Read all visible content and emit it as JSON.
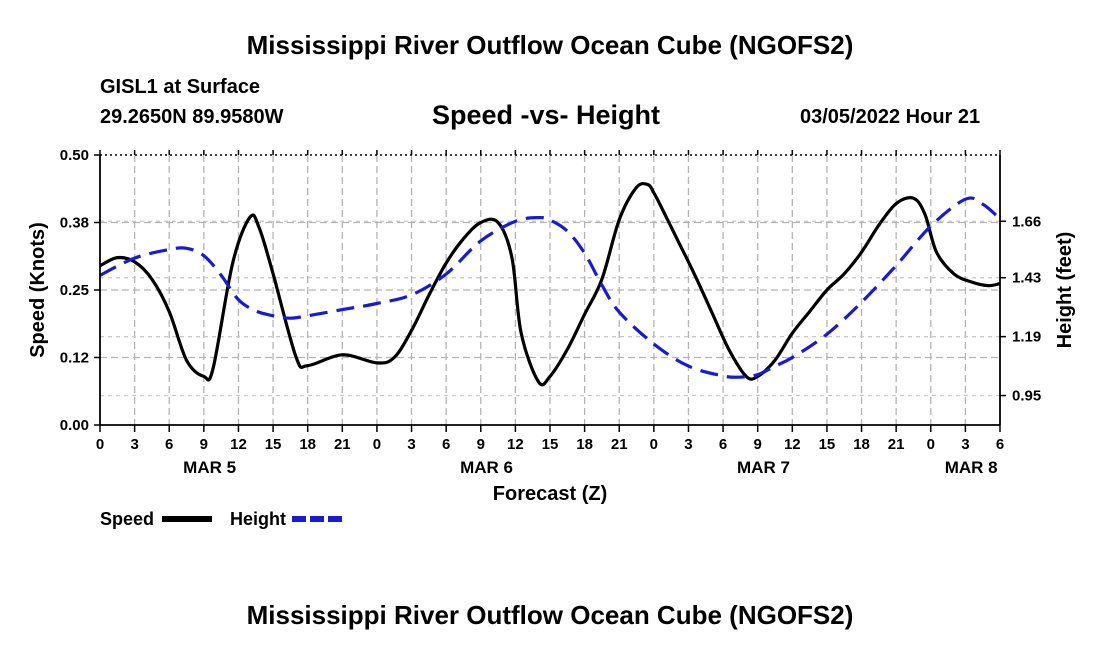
{
  "header": {
    "title": "Mississippi River Outflow Ocean Cube (NGOFS2)",
    "station": "GISL1 at Surface",
    "coords": "29.2650N  89.9580W",
    "subtitle": "Speed -vs- Height",
    "datetime": "03/05/2022 Hour 21"
  },
  "footer": {
    "title": "Mississippi River Outflow Ocean Cube (NGOFS2)"
  },
  "chart_data": {
    "type": "line",
    "title": "Speed -vs- Height",
    "xlabel": "Forecast (Z)",
    "ylabel": "Speed (Knots)",
    "y2label": "Height (feet)",
    "xlim": [
      0,
      78
    ],
    "ylim": [
      0,
      0.5
    ],
    "y2lim": [
      0.83,
      1.93
    ],
    "x_ticks": [
      0,
      3,
      6,
      9,
      12,
      15,
      18,
      21,
      24,
      27,
      30,
      33,
      36,
      39,
      42,
      45,
      48,
      51,
      54,
      57,
      60,
      63,
      66,
      69,
      72,
      75,
      78
    ],
    "x_tick_labels": [
      "0",
      "3",
      "6",
      "9",
      "12",
      "15",
      "18",
      "21",
      "0",
      "3",
      "6",
      "9",
      "12",
      "15",
      "18",
      "21",
      "0",
      "3",
      "6",
      "9",
      "12",
      "15",
      "18",
      "21",
      "0",
      "3",
      "6"
    ],
    "y_ticks": [
      0.0,
      0.125,
      0.25,
      0.375,
      0.5
    ],
    "y_tick_labels": [
      "0.00",
      "0.12",
      "0.25",
      "0.38",
      "0.50"
    ],
    "y2_ticks": [
      0.95,
      1.19,
      1.43,
      1.66
    ],
    "y2_tick_labels": [
      "0.95",
      "1.19",
      "1.43",
      "1.66"
    ],
    "day_labels": [
      {
        "x": 9.5,
        "label": "MAR 5"
      },
      {
        "x": 33.5,
        "label": "MAR 6"
      },
      {
        "x": 57.5,
        "label": "MAR 7"
      },
      {
        "x": 75.5,
        "label": "MAR 8"
      }
    ],
    "grid": true,
    "series": [
      {
        "name": "Speed",
        "color": "#000000",
        "dash": "solid",
        "axis": "left",
        "x": [
          0,
          1.5,
          3,
          4.5,
          6,
          7.5,
          9,
          9.8,
          11.5,
          13,
          13.8,
          15,
          17,
          18,
          21,
          24,
          25.5,
          27,
          28.5,
          30,
          31.5,
          33,
          34.5,
          35.7,
          36.5,
          38,
          39,
          40.5,
          42,
          43.5,
          45,
          46.5,
          47.5,
          48,
          48.5,
          50,
          51.5,
          53,
          54.5,
          56,
          57,
          58.5,
          60,
          61.5,
          63,
          64.5,
          66,
          67.5,
          69,
          70.5,
          71.5,
          72.5,
          74,
          75.5,
          77,
          78
        ],
        "values": [
          0.295,
          0.31,
          0.302,
          0.27,
          0.21,
          0.12,
          0.09,
          0.105,
          0.3,
          0.385,
          0.365,
          0.28,
          0.125,
          0.11,
          0.13,
          0.115,
          0.125,
          0.175,
          0.24,
          0.3,
          0.345,
          0.375,
          0.375,
          0.31,
          0.17,
          0.08,
          0.09,
          0.14,
          0.205,
          0.27,
          0.38,
          0.44,
          0.445,
          0.43,
          0.41,
          0.345,
          0.28,
          0.21,
          0.14,
          0.09,
          0.09,
          0.12,
          0.17,
          0.21,
          0.25,
          0.28,
          0.32,
          0.37,
          0.41,
          0.42,
          0.39,
          0.32,
          0.28,
          0.265,
          0.258,
          0.262
        ]
      },
      {
        "name": "Height",
        "color": "#1a1ad1",
        "dash": "dashed",
        "axis": "right",
        "x": [
          0,
          3,
          6,
          7.5,
          9,
          10.5,
          12,
          13.5,
          15,
          16.5,
          18,
          21,
          24,
          27,
          30,
          33,
          36,
          38,
          39,
          40.5,
          42,
          43.5,
          45,
          48,
          51,
          54,
          55.5,
          57,
          58.5,
          60,
          63,
          66,
          69,
          72,
          75,
          76.5,
          78
        ],
        "values": [
          1.44,
          1.51,
          1.545,
          1.55,
          1.52,
          1.44,
          1.34,
          1.295,
          1.275,
          1.265,
          1.275,
          1.3,
          1.325,
          1.36,
          1.445,
          1.58,
          1.66,
          1.675,
          1.665,
          1.62,
          1.53,
          1.4,
          1.29,
          1.16,
          1.07,
          1.03,
          1.025,
          1.035,
          1.07,
          1.105,
          1.2,
          1.33,
          1.48,
          1.64,
          1.75,
          1.73,
          1.67
        ]
      }
    ],
    "legend": [
      {
        "name": "Speed",
        "color": "#000000",
        "dash": "solid"
      },
      {
        "name": "Height",
        "color": "#1a1ad1",
        "dash": "dashed"
      }
    ],
    "legend_position": "bottom-left"
  }
}
